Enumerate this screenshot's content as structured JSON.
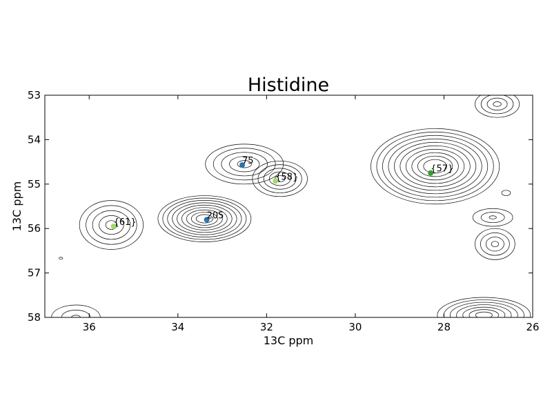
{
  "chart_data": {
    "type": "contour",
    "title": "Histidine",
    "xlabel": "13C ppm",
    "ylabel": "13C ppm",
    "xlim": [
      37,
      26
    ],
    "ylim": [
      53,
      58
    ],
    "x_inverted": true,
    "y_inverted": true,
    "grid": false,
    "xticks": [
      36,
      34,
      32,
      30,
      28,
      26
    ],
    "yticks": [
      53,
      54,
      55,
      56,
      57,
      58
    ],
    "peaks": [
      {
        "label": "75",
        "x": 32.55,
        "y": 54.57,
        "color": "#1f78b4"
      },
      {
        "label": "205",
        "x": 33.35,
        "y": 55.8,
        "color": "#1f78b4"
      },
      {
        "label": "{58}",
        "x": 31.8,
        "y": 54.93,
        "color": "#a6d96a"
      },
      {
        "label": "{61}",
        "x": 35.45,
        "y": 55.95,
        "color": "#a6d96a"
      },
      {
        "label": "{57}",
        "x": 28.3,
        "y": 54.75,
        "color": "#33a02c"
      }
    ],
    "contours": [
      {
        "x": 35.5,
        "y": 55.92,
        "rx": 0.72,
        "ry": 0.55,
        "levels": 5
      },
      {
        "x": 33.4,
        "y": 55.78,
        "rx": 1.05,
        "ry": 0.52,
        "levels": 9
      },
      {
        "x": 32.5,
        "y": 54.55,
        "rx": 0.88,
        "ry": 0.45,
        "levels": 5
      },
      {
        "x": 31.7,
        "y": 54.88,
        "rx": 0.62,
        "ry": 0.4,
        "levels": 5
      },
      {
        "x": 28.2,
        "y": 54.6,
        "rx": 1.45,
        "ry": 0.85,
        "levels": 10
      },
      {
        "x": 26.9,
        "y": 55.75,
        "rx": 0.45,
        "ry": 0.2,
        "levels": 3
      },
      {
        "x": 26.85,
        "y": 56.35,
        "rx": 0.45,
        "ry": 0.35,
        "levels": 4
      },
      {
        "x": 26.8,
        "y": 53.2,
        "rx": 0.5,
        "ry": 0.3,
        "levels": 4
      },
      {
        "x": 27.1,
        "y": 57.95,
        "rx": 1.05,
        "ry": 0.4,
        "levels": 7
      },
      {
        "x": 36.3,
        "y": 58.0,
        "rx": 0.55,
        "ry": 0.28,
        "levels": 3
      },
      {
        "x": 26.6,
        "y": 55.2,
        "rx": 0.1,
        "ry": 0.06,
        "levels": 1
      },
      {
        "x": 36.64,
        "y": 56.67,
        "rx": 0.04,
        "ry": 0.025,
        "levels": 1
      }
    ]
  }
}
